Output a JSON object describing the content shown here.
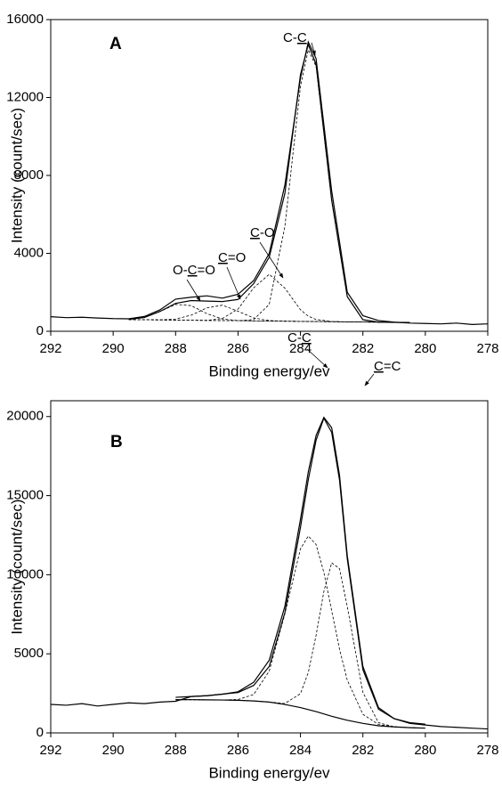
{
  "chart_data": [
    {
      "type": "line",
      "label": "A",
      "xlabel": "Binding energy/ev",
      "ylabel": "Intensity (count/sec)",
      "xlim": [
        292,
        278
      ],
      "xticks": [
        292,
        290,
        288,
        286,
        284,
        282,
        280,
        278
      ],
      "ylim": [
        0,
        16000
      ],
      "yticks": [
        0,
        4000,
        8000,
        12000,
        16000
      ],
      "series": [
        {
          "color": "#000000",
          "style": "solid",
          "x": [
            292,
            291.5,
            291,
            290.5,
            290,
            289.5,
            289,
            288.5,
            288,
            287.5,
            287,
            286.5,
            286,
            285.5,
            285,
            284.5,
            284,
            283.75,
            283.5,
            283,
            282.5,
            282,
            281.5,
            281,
            280.5,
            280,
            279.5,
            279,
            278.5,
            278
          ],
          "values": [
            750,
            700,
            720,
            680,
            650,
            640,
            760,
            1100,
            1650,
            1750,
            1820,
            1700,
            1900,
            2600,
            4000,
            7500,
            13000,
            14850,
            14000,
            7200,
            2000,
            800,
            550,
            470,
            420,
            400,
            380,
            420,
            350,
            380
          ]
        },
        {
          "color": "#000000",
          "style": "solid",
          "x": [
            289.5,
            289,
            288.5,
            288,
            287.5,
            287,
            286.5,
            286,
            285.5,
            285,
            284.5,
            284,
            283.75,
            283.5,
            283,
            282.5,
            282,
            281.5,
            281,
            280.5
          ],
          "values": [
            615,
            707,
            1018,
            1432,
            1577,
            1547,
            1525,
            1634,
            2445,
            3805,
            7072,
            13174,
            14720,
            13709,
            6731,
            1778,
            593,
            467,
            458,
            450
          ]
        },
        {
          "color": "#000000",
          "style": "dashed",
          "x": [
            289.5,
            289,
            288.5,
            288,
            287.5,
            287,
            286.5,
            286,
            285.5,
            285,
            284.5,
            284,
            283.75,
            283.5,
            283,
            282.5,
            282,
            281.5,
            281,
            280.5
          ],
          "values": [
            600,
            592,
            583,
            575,
            567,
            558,
            550,
            542,
            599,
            1382,
            5375,
            12576,
            14446,
            13604,
            6722,
            1778,
            593,
            467,
            458,
            450
          ]
        },
        {
          "color": "#000000",
          "style": "dashed",
          "x": [
            289.5,
            289,
            288.5,
            288,
            287.5,
            287,
            286.5,
            286,
            285.5,
            285,
            284.5,
            284,
            283.75,
            283.5,
            283,
            282.5,
            282,
            281.5,
            281,
            280.5
          ],
          "values": [
            600,
            592,
            583,
            575,
            567,
            558,
            655,
            1140,
            2230,
            2925,
            2214,
            1106,
            778,
            605,
            501,
            483,
            475,
            467,
            458,
            450
          ]
        },
        {
          "color": "#000000",
          "style": "dashed",
          "x": [
            289.5,
            289,
            288.5,
            288,
            287.5,
            287,
            286.5,
            286,
            285.5,
            285,
            284.5,
            284,
            283.75,
            283.5,
            283,
            282.5,
            282,
            281.5,
            281,
            280.5
          ],
          "values": [
            600,
            592,
            588,
            628,
            827,
            1198,
            1339,
            1027,
            682,
            548,
            517,
            508,
            504,
            500,
            492,
            483,
            475,
            467,
            458,
            450
          ]
        },
        {
          "color": "#000000",
          "style": "dashed",
          "x": [
            289.5,
            289,
            288.5,
            288,
            287.5,
            287,
            286.5,
            286,
            285.5,
            285,
            284.5,
            284,
            283.75,
            283.5,
            283,
            282.5,
            282,
            281.5,
            281,
            280.5
          ],
          "values": [
            615,
            707,
            1013,
            1379,
            1317,
            907,
            631,
            551,
            533,
            525,
            517,
            508,
            504,
            500,
            492,
            483,
            475,
            467,
            458,
            450
          ]
        },
        {
          "color": "#000000",
          "style": "dashed",
          "x": [
            289.5,
            280.5
          ],
          "values": [
            600,
            450
          ]
        }
      ],
      "annotations": [
        {
          "parts": [
            {
              "text": "C-"
            },
            {
              "text": "C",
              "underline": true
            }
          ]
        },
        {
          "parts": [
            {
              "text": "C",
              "underline": true
            },
            {
              "text": "-O"
            }
          ]
        },
        {
          "parts": [
            {
              "text": "C",
              "underline": true
            },
            {
              "text": "=O"
            }
          ]
        },
        {
          "parts": [
            {
              "text": "O-"
            },
            {
              "text": "C",
              "underline": true
            },
            {
              "text": "=O"
            }
          ]
        }
      ]
    },
    {
      "type": "line",
      "label": "B",
      "xlabel": "Binding energy/ev",
      "ylabel": "Intensity (count/sec)",
      "xlim": [
        292,
        278
      ],
      "xticks": [
        292,
        290,
        288,
        286,
        284,
        282,
        280,
        278
      ],
      "ylim": [
        0,
        21000
      ],
      "yticks": [
        0,
        5000,
        10000,
        15000,
        20000
      ],
      "series": [
        {
          "color": "#000000",
          "style": "solid",
          "x": [
            292,
            291.5,
            291,
            290.5,
            290,
            289.5,
            289,
            288.5,
            288,
            287.5,
            287,
            286.5,
            286,
            285.5,
            285,
            284.5,
            284,
            283.75,
            283.5,
            283.25,
            283,
            282.75,
            282.5,
            282,
            281.5,
            281,
            280.5,
            280,
            279.5,
            279,
            278.5,
            278
          ],
          "values": [
            1800,
            1750,
            1850,
            1700,
            1800,
            1900,
            1850,
            1950,
            2000,
            2300,
            2350,
            2450,
            2600,
            3200,
            4600,
            8000,
            13500,
            16500,
            18800,
            19950,
            19300,
            16300,
            11200,
            4200,
            1600,
            900,
            600,
            500,
            400,
            350,
            300,
            250
          ]
        },
        {
          "color": "#000000",
          "style": "solid",
          "x": [
            288,
            287.5,
            287,
            286.5,
            286,
            285.5,
            285,
            284.5,
            284,
            283.75,
            283.5,
            283.25,
            283,
            282.75,
            282.5,
            282,
            281.5,
            281,
            280.5,
            280
          ],
          "values": [
            2250,
            2300,
            2350,
            2450,
            2550,
            3000,
            4200,
            7600,
            13000,
            16000,
            18500,
            19900,
            19000,
            16000,
            11000,
            4000,
            1500,
            900,
            650,
            550
          ]
        },
        {
          "color": "#000000",
          "style": "dashed",
          "x": [
            288,
            287.5,
            287,
            286.5,
            286,
            285.5,
            285,
            284.5,
            284,
            283.75,
            283.5,
            283.25,
            283,
            282.75,
            282.5,
            282,
            281.5,
            281,
            280.5,
            280
          ],
          "values": [
            2100,
            2100,
            2090,
            2084,
            2110,
            2425,
            3910,
            7522,
            11635,
            12447,
            11910,
            10145,
            7722,
            5305,
            3330,
            1176,
            529,
            387,
            330,
            300
          ]
        },
        {
          "color": "#000000",
          "style": "dashed",
          "x": [
            288,
            287.5,
            287,
            286.5,
            286,
            285.5,
            285,
            284.5,
            284,
            283.75,
            283.5,
            283.25,
            283,
            282.75,
            282.5,
            282,
            281.5,
            281,
            280.5,
            280
          ],
          "values": [
            2100,
            2100,
            2090,
            2080,
            2060,
            2020,
            1950,
            1859,
            2480,
            3808,
            6168,
            8950,
            10754,
            10389,
            7988,
            2560,
            646,
            387,
            330,
            300
          ]
        },
        {
          "color": "#000000",
          "style": "solid",
          "x": [
            288,
            287.5,
            287,
            286.5,
            286,
            285.5,
            285,
            284.5,
            284,
            283.5,
            283,
            282.5,
            282,
            281.5,
            281,
            280.5,
            280
          ],
          "values": [
            2100,
            2100,
            2090,
            2080,
            2060,
            2020,
            1950,
            1800,
            1600,
            1350,
            1050,
            800,
            600,
            450,
            380,
            330,
            300
          ]
        }
      ],
      "annotations": [
        {
          "parts": [
            {
              "text": "C-"
            },
            {
              "text": "C",
              "underline": true
            }
          ]
        },
        {
          "parts": [
            {
              "text": "C",
              "underline": true
            },
            {
              "text": "=C"
            }
          ]
        }
      ]
    }
  ]
}
